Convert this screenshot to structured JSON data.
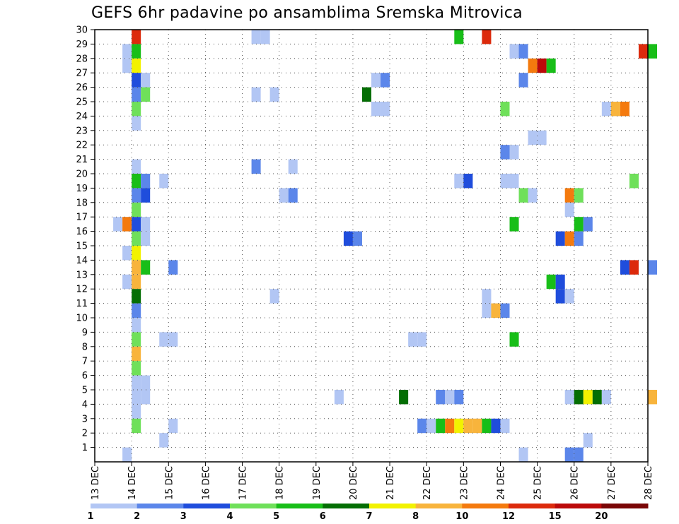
{
  "chart_data": {
    "type": "heatmap",
    "title": "GEFS 6hr padavine po ansamblima Sremska Mitrovica",
    "x_label_ticks": [
      "13 DEC",
      "14 DEC",
      "15 DEC",
      "16 DEC",
      "17 DEC",
      "18 DEC",
      "19 DEC",
      "20 DEC",
      "21 DEC",
      "22 DEC",
      "23 DEC",
      "24 DEC",
      "25 DEC",
      "26 DEC",
      "27 DEC",
      "28 DEC"
    ],
    "y_ticks": [
      1,
      2,
      3,
      4,
      5,
      6,
      7,
      8,
      9,
      10,
      11,
      12,
      13,
      14,
      15,
      16,
      17,
      18,
      19,
      20,
      21,
      22,
      23,
      24,
      25,
      26,
      27,
      28,
      29,
      30
    ],
    "ylim": [
      0,
      30
    ],
    "x_range_days": [
      0,
      15
    ],
    "grid": true,
    "colorbar": {
      "colors": [
        "#b2c6f4",
        "#5b86ea",
        "#1f4ddc",
        "#6fe05a",
        "#18be18",
        "#046e04",
        "#f2f200",
        "#f8b43c",
        "#f47a0e",
        "#dc2a0c",
        "#bc0a0a",
        "#7a0606"
      ],
      "labels": [
        "1",
        "2",
        "3",
        "4",
        "5",
        "6",
        "7",
        "8",
        "10",
        "12",
        "15",
        "20"
      ]
    },
    "cell_time_step_days": 0.25,
    "cells_note": "cells: [day_from_13DEC, ensemble_member, color_index]",
    "cells": [
      [
        1.0,
        30,
        9
      ],
      [
        4.25,
        30,
        0
      ],
      [
        4.5,
        30,
        0
      ],
      [
        9.75,
        30,
        4
      ],
      [
        10.5,
        30,
        9
      ],
      [
        0.75,
        29,
        0
      ],
      [
        1.0,
        29,
        4
      ],
      [
        11.25,
        29,
        0
      ],
      [
        11.5,
        29,
        1
      ],
      [
        14.75,
        29,
        9
      ],
      [
        15.0,
        29,
        4
      ],
      [
        0.75,
        28,
        0
      ],
      [
        1.0,
        28,
        6
      ],
      [
        11.75,
        28,
        8
      ],
      [
        12.0,
        28,
        10
      ],
      [
        12.25,
        28,
        4
      ],
      [
        1.0,
        27,
        2
      ],
      [
        1.25,
        27,
        0
      ],
      [
        7.5,
        27,
        0
      ],
      [
        7.75,
        27,
        1
      ],
      [
        11.5,
        27,
        1
      ],
      [
        1.0,
        26,
        1
      ],
      [
        1.25,
        26,
        3
      ],
      [
        4.25,
        26,
        0
      ],
      [
        4.75,
        26,
        0
      ],
      [
        7.25,
        26,
        5
      ],
      [
        1.0,
        25,
        3
      ],
      [
        7.5,
        25,
        0
      ],
      [
        7.75,
        25,
        0
      ],
      [
        11.0,
        25,
        3
      ],
      [
        13.75,
        25,
        0
      ],
      [
        14.0,
        25,
        7
      ],
      [
        14.25,
        25,
        8
      ],
      [
        1.0,
        24,
        0
      ],
      [
        11.75,
        23,
        0
      ],
      [
        12.0,
        23,
        0
      ],
      [
        11.0,
        22,
        1
      ],
      [
        11.25,
        22,
        0
      ],
      [
        1.0,
        21,
        0
      ],
      [
        4.25,
        21,
        1
      ],
      [
        5.25,
        21,
        0
      ],
      [
        1.0,
        20,
        4
      ],
      [
        1.25,
        20,
        1
      ],
      [
        1.75,
        20,
        0
      ],
      [
        9.75,
        20,
        0
      ],
      [
        10.0,
        20,
        2
      ],
      [
        11.0,
        20,
        0
      ],
      [
        11.25,
        20,
        0
      ],
      [
        14.5,
        20,
        3
      ],
      [
        1.0,
        19,
        1
      ],
      [
        1.25,
        19,
        2
      ],
      [
        5.0,
        19,
        0
      ],
      [
        5.25,
        19,
        1
      ],
      [
        11.5,
        19,
        3
      ],
      [
        11.75,
        19,
        0
      ],
      [
        12.75,
        19,
        8
      ],
      [
        13.0,
        19,
        3
      ],
      [
        1.0,
        18,
        3
      ],
      [
        12.75,
        18,
        0
      ],
      [
        0.5,
        17,
        0
      ],
      [
        0.75,
        17,
        8
      ],
      [
        1.0,
        17,
        2
      ],
      [
        1.25,
        17,
        0
      ],
      [
        11.25,
        17,
        4
      ],
      [
        13.0,
        17,
        4
      ],
      [
        13.25,
        17,
        1
      ],
      [
        1.0,
        16,
        3
      ],
      [
        1.25,
        16,
        0
      ],
      [
        6.75,
        16,
        2
      ],
      [
        7.0,
        16,
        1
      ],
      [
        12.5,
        16,
        2
      ],
      [
        12.75,
        16,
        8
      ],
      [
        13.0,
        16,
        1
      ],
      [
        0.75,
        15,
        0
      ],
      [
        1.0,
        15,
        6
      ],
      [
        1.0,
        14,
        7
      ],
      [
        1.25,
        14,
        4
      ],
      [
        2.0,
        14,
        1
      ],
      [
        14.25,
        14,
        2
      ],
      [
        14.5,
        14,
        9
      ],
      [
        15.0,
        14,
        1
      ],
      [
        0.75,
        13,
        0
      ],
      [
        1.0,
        13,
        7
      ],
      [
        12.25,
        13,
        4
      ],
      [
        12.5,
        13,
        2
      ],
      [
        1.0,
        12,
        5
      ],
      [
        4.75,
        12,
        0
      ],
      [
        10.5,
        12,
        0
      ],
      [
        12.5,
        12,
        2
      ],
      [
        12.75,
        12,
        0
      ],
      [
        1.0,
        11,
        1
      ],
      [
        10.5,
        11,
        0
      ],
      [
        10.75,
        11,
        7
      ],
      [
        11.0,
        11,
        1
      ],
      [
        1.0,
        10,
        0
      ],
      [
        1.0,
        9,
        3
      ],
      [
        1.75,
        9,
        0
      ],
      [
        2.0,
        9,
        0
      ],
      [
        8.5,
        9,
        0
      ],
      [
        8.75,
        9,
        0
      ],
      [
        11.25,
        9,
        4
      ],
      [
        1.0,
        8,
        7
      ],
      [
        1.0,
        7,
        3
      ],
      [
        1.0,
        6,
        0
      ],
      [
        1.25,
        6,
        0
      ],
      [
        1.0,
        5,
        0
      ],
      [
        1.25,
        5,
        0
      ],
      [
        6.5,
        5,
        0
      ],
      [
        8.25,
        5,
        5
      ],
      [
        9.25,
        5,
        1
      ],
      [
        9.5,
        5,
        0
      ],
      [
        9.75,
        5,
        1
      ],
      [
        12.75,
        5,
        0
      ],
      [
        13.0,
        5,
        5
      ],
      [
        13.25,
        5,
        6
      ],
      [
        13.5,
        5,
        5
      ],
      [
        13.75,
        5,
        0
      ],
      [
        15.0,
        5,
        7
      ],
      [
        1.0,
        4,
        0
      ],
      [
        1.0,
        3,
        3
      ],
      [
        2.0,
        3,
        0
      ],
      [
        8.75,
        3,
        1
      ],
      [
        9.0,
        3,
        0
      ],
      [
        9.25,
        3,
        4
      ],
      [
        9.5,
        3,
        8
      ],
      [
        9.75,
        3,
        6
      ],
      [
        10.0,
        3,
        7
      ],
      [
        10.25,
        3,
        7
      ],
      [
        10.5,
        3,
        4
      ],
      [
        10.75,
        3,
        2
      ],
      [
        11.0,
        3,
        0
      ],
      [
        1.75,
        2,
        0
      ],
      [
        13.25,
        2,
        0
      ],
      [
        0.75,
        1,
        0
      ],
      [
        11.5,
        1,
        0
      ],
      [
        12.75,
        1,
        1
      ],
      [
        13.0,
        1,
        1
      ]
    ]
  }
}
